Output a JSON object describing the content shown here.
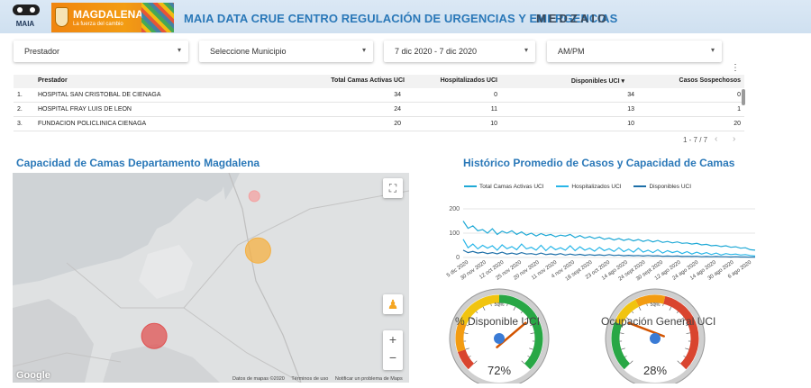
{
  "header": {
    "maia_label": "MAIA",
    "magdalena_title": "MAGDALENA",
    "magdalena_slogan": "La fuerza del cambio",
    "title": "MAIA DATA CRUE CENTRO REGULACIÓN DE URGENCIAS Y EMERGENCIAS",
    "brand": "MEDZAIO"
  },
  "filters": [
    {
      "label": "Prestador"
    },
    {
      "label": "Seleccione Municipio"
    },
    {
      "label": "7 dic 2020 - 7 dic 2020"
    },
    {
      "label": "AM/PM"
    }
  ],
  "table": {
    "columns": [
      "Prestador",
      "Total Camas Activas UCI",
      "Hospitalizados UCI",
      "Disponibles UCI",
      "Casos Sospechosos"
    ],
    "sort_icon": "sort-down-icon",
    "rows": [
      {
        "n": "1.",
        "prestador": "HOSPITAL SAN CRISTOBAL DE CIENAGA",
        "total": "34",
        "hosp": "0",
        "disp": "34",
        "casos": "0"
      },
      {
        "n": "2.",
        "prestador": "HOSPITAL FRAY LUIS DE LEON",
        "total": "24",
        "hosp": "11",
        "disp": "13",
        "casos": "1"
      },
      {
        "n": "3.",
        "prestador": "FUNDACION POLICLINICA CIENAGA",
        "total": "20",
        "hosp": "10",
        "disp": "10",
        "casos": "20"
      }
    ],
    "pagination": "1 - 7 / 7"
  },
  "map_section": {
    "title": "Capacidad de Camas Departamento Magdalena",
    "google": "Google",
    "footer": [
      "Datos de mapas ©2020",
      "Términos de uso",
      "Notificar un problema de Maps"
    ],
    "bubbles": [
      {
        "color": "#f4a1a1",
        "lon": -74.22,
        "lat": 11.0
      },
      {
        "color": "#f5b041",
        "lon": -74.2,
        "lat": 10.3
      },
      {
        "color": "#e05252",
        "lon": -74.75,
        "lat": 9.2
      }
    ]
  },
  "chart_section": {
    "title": "Histórico Promedio de Casos y Capacidad de Camas"
  },
  "chart_data": {
    "type": "line",
    "title": "",
    "xlabel": "",
    "ylabel": "",
    "ylim": [
      0,
      200
    ],
    "yticks": [
      0,
      100,
      200
    ],
    "x_tick_labels": [
      "5 dic 2020",
      "30 nov 2020",
      "12 oct 2020",
      "25 nov 2020",
      "20 nov 2020",
      "11 nov 2020",
      "4 nov 2020",
      "18 sept 2020",
      "23 oct 2020",
      "14 ago 2020",
      "24 sept 2020",
      "30 sept 2020",
      "12 ago 2020",
      "24 ago 2020",
      "14 ago 2020",
      "30 ago 2020",
      "6 ago 2020"
    ],
    "series": [
      {
        "name": "Total Camas Activas UCI",
        "color": "#1fa9d6",
        "values": [
          150,
          120,
          130,
          110,
          115,
          100,
          118,
          95,
          108,
          100,
          110,
          95,
          105,
          92,
          100,
          88,
          98,
          90,
          95,
          85,
          92,
          88,
          95,
          82,
          90,
          80,
          86,
          78,
          84,
          75,
          80,
          72,
          78,
          70,
          76,
          68,
          74,
          66,
          72,
          64,
          70,
          62,
          66,
          60,
          64,
          58,
          60,
          55,
          58,
          52,
          54,
          48,
          50,
          45,
          48,
          42,
          44,
          38,
          40,
          32,
          30
        ]
      },
      {
        "name": "Hospitalizados UCI",
        "color": "#29b6e8",
        "values": [
          75,
          40,
          55,
          35,
          50,
          38,
          48,
          30,
          52,
          36,
          45,
          32,
          55,
          35,
          42,
          30,
          50,
          28,
          46,
          32,
          40,
          30,
          48,
          28,
          44,
          30,
          38,
          26,
          42,
          28,
          36,
          25,
          40,
          24,
          34,
          22,
          38,
          22,
          30,
          20,
          32,
          18,
          28,
          20,
          26,
          16,
          24,
          14,
          22,
          14,
          20,
          12,
          18,
          10,
          16,
          12,
          14,
          10,
          12,
          8,
          6
        ]
      },
      {
        "name": "Disponibles UCI",
        "color": "#1d6fa8",
        "values": [
          30,
          20,
          25,
          18,
          22,
          16,
          20,
          15,
          22,
          14,
          18,
          13,
          20,
          14,
          16,
          12,
          18,
          12,
          15,
          11,
          16,
          10,
          14,
          10,
          13,
          9,
          12,
          9,
          11,
          8,
          12,
          8,
          10,
          7,
          9,
          7,
          8,
          6,
          8,
          6,
          7,
          5,
          6,
          5,
          6,
          4,
          5,
          4,
          5,
          3,
          4,
          3,
          4,
          3,
          3,
          2,
          3,
          2,
          2,
          1,
          1
        ]
      }
    ]
  },
  "gauges": [
    {
      "label": "% Disponible UCI",
      "value": 72,
      "display": "72%",
      "mid_label": "50%",
      "bands": [
        {
          "from": 0,
          "to": 10,
          "color": "#d9452f"
        },
        {
          "from": 10,
          "to": 25,
          "color": "#f39c12"
        },
        {
          "from": 25,
          "to": 50,
          "color": "#f1c40f"
        },
        {
          "from": 50,
          "to": 100,
          "color": "#28a745"
        }
      ]
    },
    {
      "label": "Ocupación General UCI",
      "value": 28,
      "display": "28%",
      "mid_label": "50%",
      "bands": [
        {
          "from": 0,
          "to": 25,
          "color": "#28a745"
        },
        {
          "from": 25,
          "to": 40,
          "color": "#f1c40f"
        },
        {
          "from": 40,
          "to": 55,
          "color": "#f39c12"
        },
        {
          "from": 55,
          "to": 100,
          "color": "#d9452f"
        }
      ]
    }
  ]
}
